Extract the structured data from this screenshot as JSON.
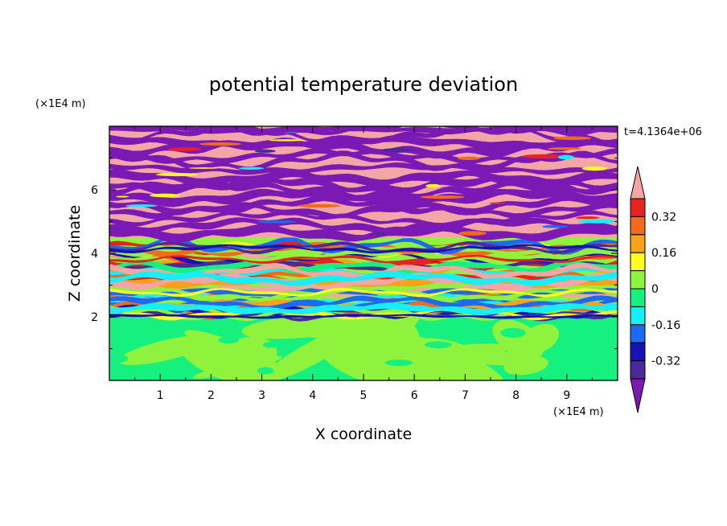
{
  "chart_data": {
    "type": "heatmap",
    "title": "potential temperature deviation",
    "xlabel": "X coordinate",
    "ylabel": "Z coordinate",
    "x_unit": "(×1E4 m)",
    "y_unit": "(×1E4 m)",
    "time_label": "t=4.1364e+06",
    "xlim": [
      0,
      10
    ],
    "ylim": [
      0,
      8
    ],
    "x_ticks": [
      "1",
      "2",
      "3",
      "4",
      "5",
      "6",
      "7",
      "8",
      "9"
    ],
    "y_ticks": [
      "2",
      "4",
      "6"
    ],
    "grid": false,
    "colorbar": {
      "placement": "right",
      "labels": [
        "0.32",
        "0.16",
        "0",
        "-0.16",
        "-0.32"
      ],
      "levels_top_to_bottom": [
        ">0.40",
        "0.32 to 0.40",
        "0.24 to 0.32",
        "0.16 to 0.24",
        "0.08 to 0.16",
        "0 to 0.08",
        "-0.08 to 0",
        "-0.16 to -0.08",
        "-0.24 to -0.16",
        "-0.32 to -0.24",
        "-0.40 to -0.32",
        "<-0.40"
      ],
      "colors_top_to_bottom": [
        "#f4a6a6",
        "#e8231f",
        "#f26a1b",
        "#f7a21b",
        "#fdfd20",
        "#8ff23c",
        "#16f07e",
        "#16eef8",
        "#1c6af2",
        "#1612b8",
        "#4a2a9a",
        "#7a19b4"
      ]
    },
    "field_description": [
      {
        "z_range": [
          0,
          2
        ],
        "dominant_levels": [
          "0 to 0.08",
          "-0.08 to 0"
        ]
      },
      {
        "z_range": [
          2,
          4.5
        ],
        "dominant_levels": [
          "mixed, all levels"
        ]
      },
      {
        "z_range": [
          4.5,
          8
        ],
        "dominant_levels": [
          ">0.40",
          "<-0.40"
        ]
      }
    ]
  }
}
